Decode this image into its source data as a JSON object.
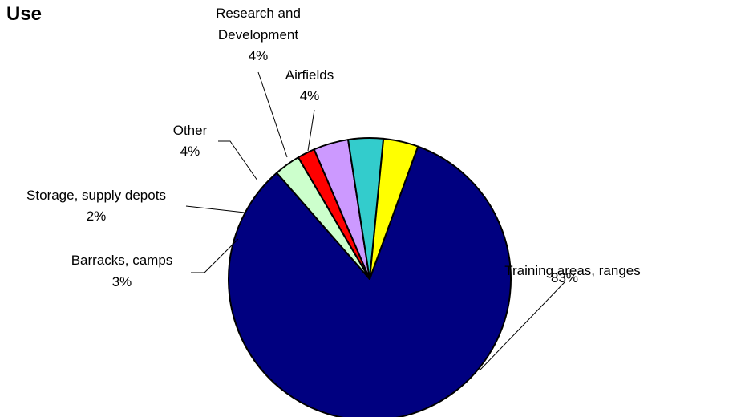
{
  "chart_data": {
    "type": "pie",
    "title": "Use",
    "start_angle_deg": 20,
    "direction": "clockwise",
    "slices": [
      {
        "label": "Training areas, ranges",
        "value": 83,
        "pct_label": "83%",
        "color": "#000080"
      },
      {
        "label": "Barracks, camps",
        "value": 3,
        "pct_label": "3%",
        "color": "#CCFFCC"
      },
      {
        "label": "Storage, supply depots",
        "value": 2,
        "pct_label": "2%",
        "color": "#FF0000"
      },
      {
        "label": "Other",
        "value": 4,
        "pct_label": "4%",
        "color": "#CC99FF"
      },
      {
        "label": "Research and Development",
        "value": 4,
        "pct_label": "4%",
        "color": "#33CCCC"
      },
      {
        "label": "Airfields",
        "value": 4,
        "pct_label": "4%",
        "color": "#FFFF00"
      }
    ]
  }
}
